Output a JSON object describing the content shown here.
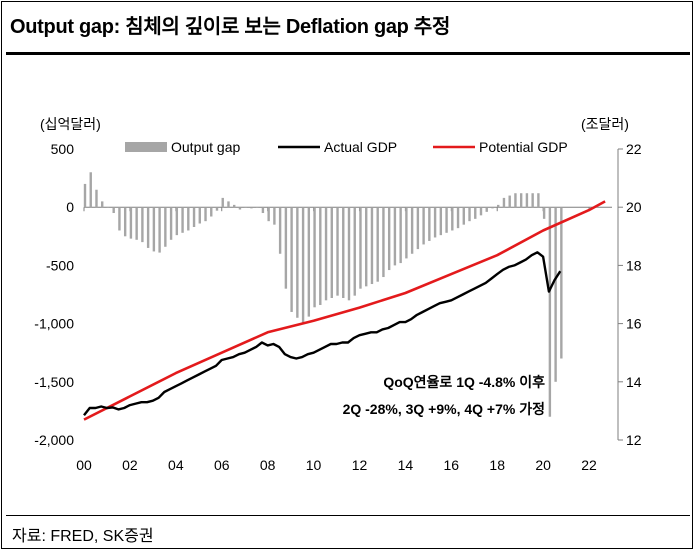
{
  "title": "Output gap: 침체의 깊이로 보는 Deflation gap 추정",
  "source": "자료: FRED, SK증권",
  "chart_data": {
    "type": "bar+line",
    "left_unit": "(십억달러)",
    "right_unit": "(조달러)",
    "ylim_left": [
      -2000,
      500
    ],
    "yticks_left": [
      {
        "value": 500,
        "label": "500"
      },
      {
        "value": 0,
        "label": "0"
      },
      {
        "value": -500,
        "label": "-500"
      },
      {
        "value": -1000,
        "label": "-1,000"
      },
      {
        "value": -1500,
        "label": "-1,500"
      },
      {
        "value": -2000,
        "label": "-2,000"
      }
    ],
    "ylim_right": [
      12,
      22
    ],
    "yticks_right": [
      {
        "value": 22,
        "label": "22"
      },
      {
        "value": 20,
        "label": "20"
      },
      {
        "value": 18,
        "label": "18"
      },
      {
        "value": 16,
        "label": "16"
      },
      {
        "value": 14,
        "label": "14"
      },
      {
        "value": 12,
        "label": "12"
      }
    ],
    "xlim": [
      2000,
      2023
    ],
    "xticks": [
      {
        "value": 2000,
        "label": "00"
      },
      {
        "value": 2002,
        "label": "02"
      },
      {
        "value": 2004,
        "label": "04"
      },
      {
        "value": 2006,
        "label": "06"
      },
      {
        "value": 2008,
        "label": "08"
      },
      {
        "value": 2010,
        "label": "10"
      },
      {
        "value": 2012,
        "label": "12"
      },
      {
        "value": 2014,
        "label": "14"
      },
      {
        "value": 2016,
        "label": "16"
      },
      {
        "value": 2018,
        "label": "18"
      },
      {
        "value": 2020,
        "label": "20"
      },
      {
        "value": 2022,
        "label": "22"
      }
    ],
    "legend": [
      "Output gap",
      "Actual GDP",
      "Potential GDP"
    ],
    "legend_position": "top",
    "annotation": [
      "QoQ연율로 1Q -4.8% 이후",
      "2Q -28%, 3Q +9%, 4Q +7% 가정"
    ],
    "colors": {
      "output_gap": "#a6a6a6",
      "actual_gdp": "#000000",
      "potential_gdp": "#e31a1c"
    },
    "output_gap": {
      "x": [
        2000.0,
        2000.25,
        2000.5,
        2000.75,
        2001.0,
        2001.25,
        2001.5,
        2001.75,
        2002.0,
        2002.25,
        2002.5,
        2002.75,
        2003.0,
        2003.25,
        2003.5,
        2003.75,
        2004.0,
        2004.25,
        2004.5,
        2004.75,
        2005.0,
        2005.25,
        2005.5,
        2005.75,
        2006.0,
        2006.25,
        2006.5,
        2006.75,
        2007.0,
        2007.25,
        2007.5,
        2007.75,
        2008.0,
        2008.25,
        2008.5,
        2008.75,
        2009.0,
        2009.25,
        2009.5,
        2009.75,
        2010.0,
        2010.25,
        2010.5,
        2010.75,
        2011.0,
        2011.25,
        2011.5,
        2011.75,
        2012.0,
        2012.25,
        2012.5,
        2012.75,
        2013.0,
        2013.25,
        2013.5,
        2013.75,
        2014.0,
        2014.25,
        2014.5,
        2014.75,
        2015.0,
        2015.25,
        2015.5,
        2015.75,
        2016.0,
        2016.25,
        2016.5,
        2016.75,
        2017.0,
        2017.25,
        2017.5,
        2017.75,
        2018.0,
        2018.25,
        2018.5,
        2018.75,
        2019.0,
        2019.25,
        2019.5,
        2019.75,
        2020.0,
        2020.25,
        2020.5,
        2020.75
      ],
      "values": [
        200,
        300,
        150,
        50,
        0,
        -50,
        -200,
        -250,
        -270,
        -280,
        -300,
        -350,
        -380,
        -390,
        -340,
        -280,
        -240,
        -220,
        -200,
        -170,
        -140,
        -120,
        -80,
        -30,
        80,
        50,
        20,
        -20,
        0,
        -10,
        0,
        -50,
        -120,
        -150,
        -400,
        -700,
        -900,
        -950,
        -1000,
        -940,
        -860,
        -840,
        -800,
        -780,
        -760,
        -780,
        -800,
        -760,
        -700,
        -680,
        -660,
        -640,
        -600,
        -540,
        -500,
        -480,
        -440,
        -400,
        -360,
        -320,
        -290,
        -260,
        -240,
        -220,
        -200,
        -180,
        -150,
        -120,
        -100,
        -70,
        -40,
        -10,
        20,
        80,
        100,
        120,
        120,
        120,
        120,
        120,
        -100,
        -1800,
        -1500,
        -1300
      ]
    },
    "actual_gdp": {
      "x": [
        2000.0,
        2000.25,
        2000.5,
        2000.75,
        2001.0,
        2001.25,
        2001.5,
        2001.75,
        2002.0,
        2002.25,
        2002.5,
        2002.75,
        2003.0,
        2003.25,
        2003.5,
        2003.75,
        2004.0,
        2004.25,
        2004.5,
        2004.75,
        2005.0,
        2005.25,
        2005.5,
        2005.75,
        2006.0,
        2006.25,
        2006.5,
        2006.75,
        2007.0,
        2007.25,
        2007.5,
        2007.75,
        2008.0,
        2008.25,
        2008.5,
        2008.75,
        2009.0,
        2009.25,
        2009.5,
        2009.75,
        2010.0,
        2010.25,
        2010.5,
        2010.75,
        2011.0,
        2011.25,
        2011.5,
        2011.75,
        2012.0,
        2012.25,
        2012.5,
        2012.75,
        2013.0,
        2013.25,
        2013.5,
        2013.75,
        2014.0,
        2014.25,
        2014.5,
        2014.75,
        2015.0,
        2015.25,
        2015.5,
        2015.75,
        2016.0,
        2016.25,
        2016.5,
        2016.75,
        2017.0,
        2017.25,
        2017.5,
        2017.75,
        2018.0,
        2018.25,
        2018.5,
        2018.75,
        2019.0,
        2019.25,
        2019.5,
        2019.75,
        2020.0,
        2020.25,
        2020.5,
        2020.75
      ],
      "values": [
        12.85,
        13.1,
        13.1,
        13.15,
        13.1,
        13.12,
        13.05,
        13.1,
        13.2,
        13.25,
        13.3,
        13.3,
        13.35,
        13.45,
        13.65,
        13.75,
        13.85,
        13.95,
        14.05,
        14.15,
        14.25,
        14.35,
        14.45,
        14.55,
        14.75,
        14.8,
        14.85,
        14.95,
        15.0,
        15.1,
        15.2,
        15.35,
        15.25,
        15.3,
        15.2,
        14.95,
        14.85,
        14.8,
        14.85,
        14.95,
        15.0,
        15.1,
        15.2,
        15.3,
        15.3,
        15.35,
        15.35,
        15.5,
        15.6,
        15.65,
        15.7,
        15.7,
        15.8,
        15.85,
        15.95,
        16.05,
        16.05,
        16.15,
        16.3,
        16.4,
        16.5,
        16.6,
        16.7,
        16.75,
        16.8,
        16.9,
        17.0,
        17.1,
        17.2,
        17.3,
        17.4,
        17.55,
        17.7,
        17.85,
        17.95,
        18.0,
        18.1,
        18.2,
        18.35,
        18.45,
        18.3,
        17.1,
        17.5,
        17.8
      ]
    },
    "potential_gdp": {
      "x": [
        2000.0,
        2002.0,
        2004.0,
        2006.0,
        2008.0,
        2010.0,
        2012.0,
        2014.0,
        2016.0,
        2018.0,
        2020.0,
        2022.0,
        2022.7
      ],
      "values": [
        12.7,
        13.5,
        14.3,
        15.0,
        15.7,
        16.1,
        16.55,
        17.05,
        17.7,
        18.35,
        19.2,
        19.9,
        20.2
      ]
    }
  }
}
